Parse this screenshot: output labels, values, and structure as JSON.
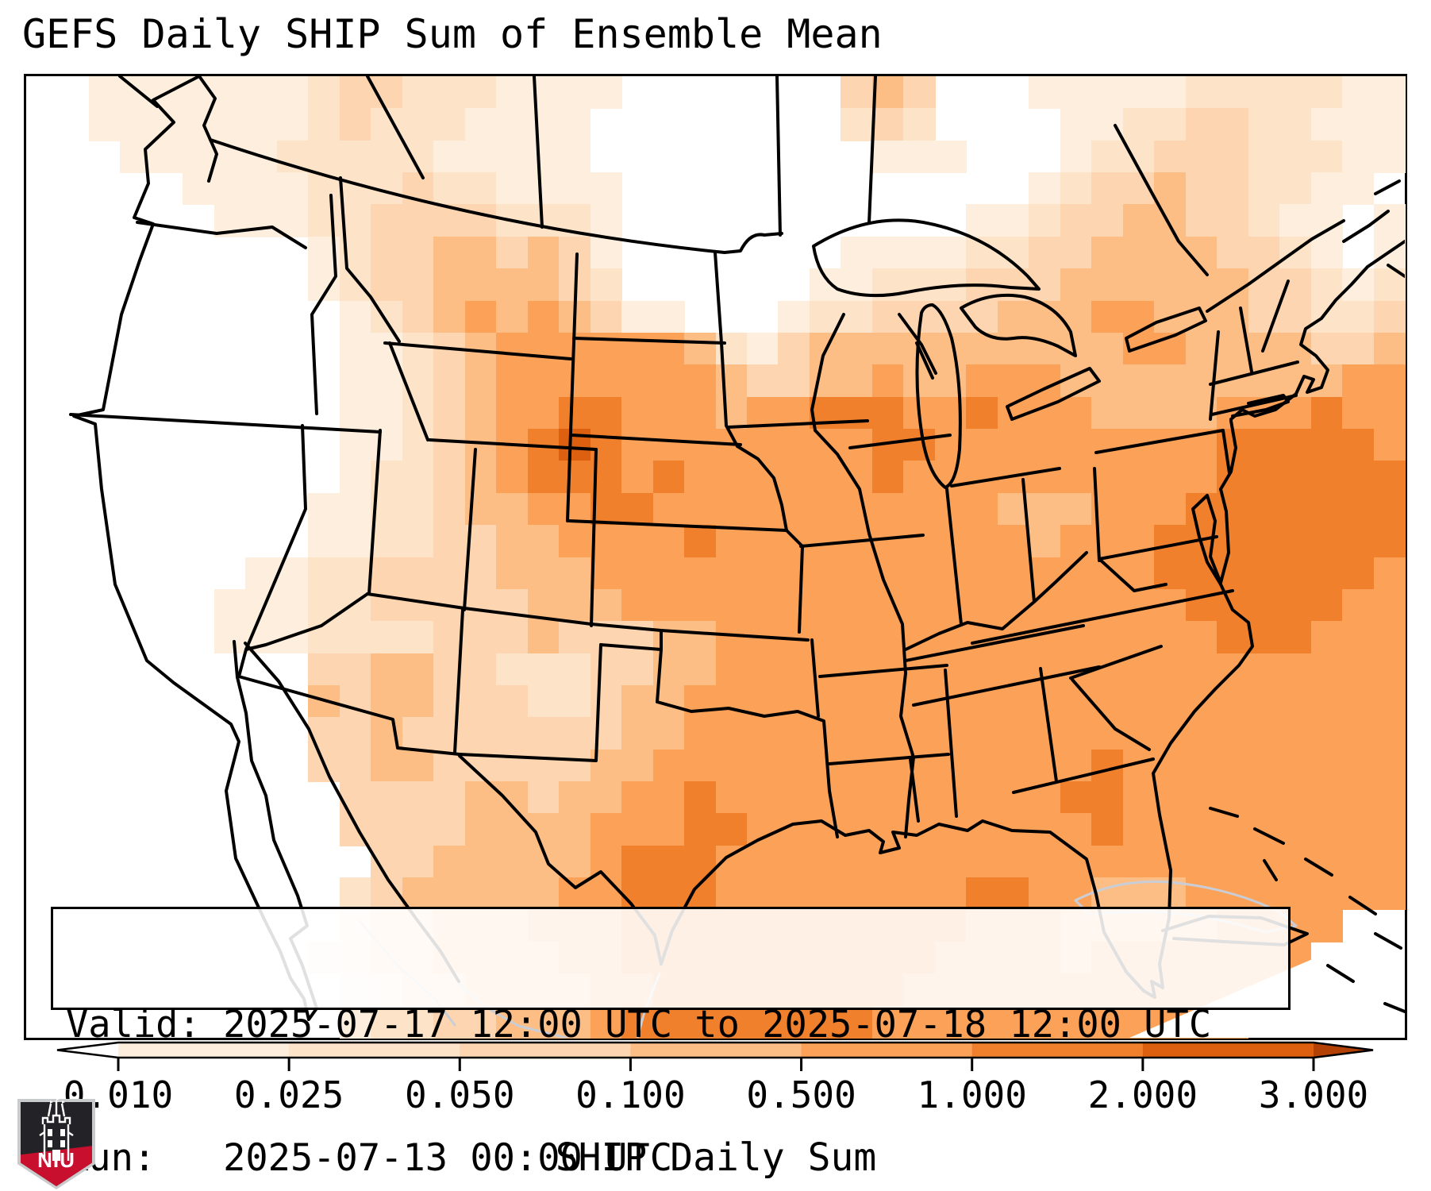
{
  "title": "GEFS Daily SHIP Sum of Ensemble Mean",
  "info_box": {
    "line1": "Valid: 2025-07-17 12:00 UTC to 2025-07-18 12:00 UTC",
    "line2": "Run:   2025-07-13 00:00 UTC"
  },
  "logo": {
    "org": "NIU",
    "red": "#c8102e",
    "dark": "#232327",
    "silver": "#c9cacc"
  },
  "chart_data": {
    "type": "heatmap",
    "subtype": "geographic filled-contour forecast map (CONUS, Lambert-conformal style)",
    "title": "GEFS Daily SHIP Sum of Ensemble Mean",
    "colorbar_label": "SHIP Daily Sum",
    "valid": "2025-07-17 12:00 UTC to 2025-07-18 12:00 UTC",
    "run": "2025-07-13 00:00 UTC",
    "legend_position": "bottom",
    "ticks": [
      "0.010",
      "0.025",
      "0.050",
      "0.100",
      "0.500",
      "1.000",
      "2.000",
      "3.000"
    ],
    "tick_values": [
      0.01,
      0.025,
      0.05,
      0.1,
      0.5,
      1.0,
      2.0,
      3.0
    ],
    "scale_type": "discrete bins, non-linear (log-like)",
    "level_colors": [
      "#ffffff",
      "#fdeedd",
      "#fde3c8",
      "#fdd5b0",
      "#fdbe85",
      "#fca158",
      "#f1802d",
      "#dd6010"
    ],
    "under_color": "#ffffff",
    "over_color": "#b34104",
    "line_color": "#000000",
    "weak_line_color": "#c9ced6",
    "grid_rows": 30,
    "grid_cols": 44,
    "grid_note": "level index per cell, 0 = <0.010 (white) through 7 = 2.000-3.000; spaces are ignored",
    "grid_levels": [
      "0011 1111 1233 2221 1110 0000 0034 3000 1111 1222 2211",
      "0011 1111 1232 2211 1100 0000 0023 2000 0112 2332 2111",
      "0001 1111 2222 2111 1100 0000 0001 1100 0122 3332 2211",
      "0000 0111 1222 3221 1110 0000 0000 0000 1233 4332 2110",
      "0000 0011 1223 3332 2210 0000 0000 0011 2334 4332 1101",
      "0000 0000 0123 3443 4310 0000 0011 1122 3344 4433 2101",
      "0000 0000 0123 3444 4320 0000 0112 2233 3444 4443 3212",
      "0000 0000 0012 3454 5431 1000 1223 3334 4455 4443 3223",
      "0000 0000 0011 2345 5555 5421 3444 4444 4445 5444 4334",
      "0000 0000 0011 2345 5555 5543 3445 4455 5444 4444 4455",
      "0000 0000 0011 2345 5665 5545 5666 5565 5544 4455 5655",
      "0000 0000 0011 2345 6765 5555 5556 6555 5555 5566 6665",
      "0000 0000 0012 2345 6665 6555 5556 5555 5555 5566 6666",
      "0000 0000 0112 2344 5566 5555 5555 5554 4455 5666 6666",
      "0000 0000 0112 2334 4555 5655 5555 5555 4555 6666 6666",
      "0000 0001 1223 3334 4455 5555 5555 5555 5555 6666 6665",
      "0000 0011 1223 3333 4445 5555 5555 5555 5555 5666 6655",
      "0000 0011 1222 2333 4333 4455 5555 5555 5555 5566 6555",
      "0000 0000 0334 4332 2233 4455 5555 5555 5555 5555 5555",
      "0000 0000 0434 4333 2234 4555 5555 5555 5555 5555 5555",
      "0000 0000 0334 3333 3334 4555 5555 5555 5555 5555 5555",
      "0000 0000 0334 4333 3344 5555 5555 5555 5565 5555 5555",
      "0000 0000 0033 3344 3445 5655 5555 5555 5665 5555 5555",
      "0000 0000 0033 3344 4455 5665 5555 5555 5565 5555 5555",
      "0000 0000 0003 3444 4456 6655 5555 5555 5555 5555 5555",
      "0000 0000 0023 4444 4556 6655 5555 5566 5544 4555 5555",
      "0000 0000 0023 3444 5556 6666 6666 6655 5444 4455 5500",
      "0000 0000 0123 3444 4556 6666 6666 6555 5455 5555 5000",
      "0000 0000 0012 3344 4455 6666 6666 5555 5555 5555 0000",
      "0000 0000 0012 2334 4456 6666 6665 5555 5555 5550 0000"
    ]
  }
}
